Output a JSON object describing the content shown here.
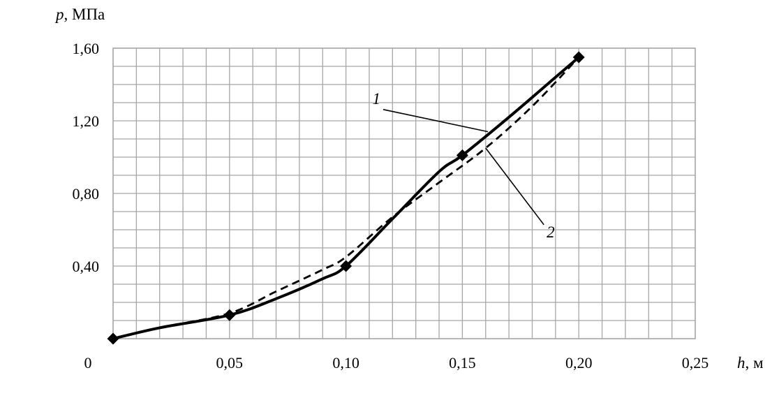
{
  "chart_data": {
    "type": "line",
    "ylabel_var": "p",
    "ylabel_unit": ", МПа",
    "xlabel_var": "h",
    "xlabel_unit": ", м",
    "origin_label": "0",
    "x_ticks": [
      "0,05",
      "0,10",
      "0,15",
      "0,20",
      "0,25"
    ],
    "x_tick_values": [
      0.05,
      0.1,
      0.15,
      0.2,
      0.25
    ],
    "y_ticks": [
      "0,40",
      "0,80",
      "1,20",
      "1,60"
    ],
    "y_tick_values": [
      0.4,
      0.8,
      1.2,
      1.6
    ],
    "xlim": [
      0,
      0.25
    ],
    "ylim": [
      0,
      1.6
    ],
    "x_minor_step": 0.01,
    "y_minor_step": 0.1,
    "grid": true,
    "series": [
      {
        "name": "1",
        "style": "solid",
        "markers": true,
        "marker_points": [
          [
            0,
            0
          ],
          [
            0.05,
            0.13
          ],
          [
            0.1,
            0.4
          ],
          [
            0.15,
            1.01
          ],
          [
            0.2,
            1.55
          ]
        ],
        "x": [
          0,
          0.02,
          0.05,
          0.07,
          0.09,
          0.1,
          0.12,
          0.14,
          0.15,
          0.17,
          0.19,
          0.2
        ],
        "y": [
          0,
          0.06,
          0.13,
          0.22,
          0.33,
          0.4,
          0.66,
          0.92,
          1.01,
          1.22,
          1.44,
          1.55
        ]
      },
      {
        "name": "2",
        "style": "dashed",
        "markers": false,
        "x": [
          0,
          0.02,
          0.05,
          0.07,
          0.09,
          0.1,
          0.12,
          0.14,
          0.16,
          0.18,
          0.2
        ],
        "y": [
          0,
          0.06,
          0.14,
          0.26,
          0.38,
          0.45,
          0.67,
          0.86,
          1.05,
          1.28,
          1.55
        ]
      }
    ],
    "annotations": [
      {
        "text": "1",
        "target_series": "1",
        "at_x": 0.161,
        "at_y": 1.14,
        "label_x": 0.116,
        "label_y": 1.27
      },
      {
        "text": "2",
        "target_series": "2",
        "at_x": 0.16,
        "at_y": 1.05,
        "label_x": 0.185,
        "label_y": 0.62
      }
    ]
  }
}
